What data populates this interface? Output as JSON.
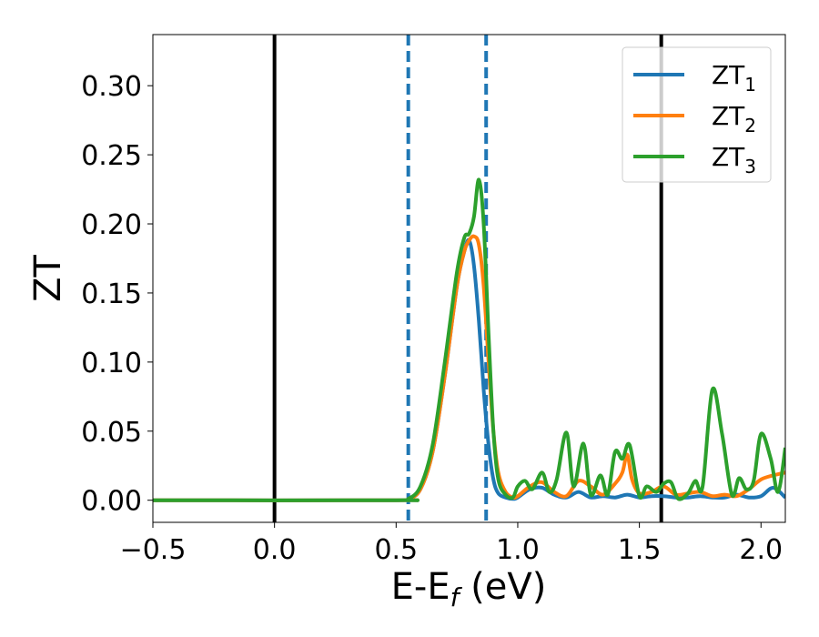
{
  "chart_data": {
    "type": "line",
    "xlabel": {
      "main": "E-E",
      "sub": "f",
      "unit": " (eV)"
    },
    "ylabel": "ZT",
    "xlim": [
      -0.5,
      2.1
    ],
    "ylim": [
      -0.016,
      0.337
    ],
    "xticks": [
      -0.5,
      0.0,
      0.5,
      1.0,
      1.5,
      2.0
    ],
    "xtick_labels": [
      "−0.5",
      "0.0",
      "0.5",
      "1.0",
      "1.5",
      "2.0"
    ],
    "yticks": [
      0.0,
      0.05,
      0.1,
      0.15,
      0.2,
      0.25,
      0.3
    ],
    "ytick_labels": [
      "0.00",
      "0.05",
      "0.10",
      "0.15",
      "0.20",
      "0.25",
      "0.30"
    ],
    "grid": false,
    "legend_position": "top-right",
    "vertical_lines": [
      {
        "x": 0.0,
        "style": "solid",
        "color": "#000000"
      },
      {
        "x": 1.59,
        "style": "solid",
        "color": "#000000"
      },
      {
        "x": 0.55,
        "style": "dashed",
        "color": "#1f77b4"
      },
      {
        "x": 0.87,
        "style": "dashed",
        "color": "#1f77b4"
      }
    ],
    "series": [
      {
        "name": "ZT",
        "sub": "1",
        "color": "#1f77b4",
        "x": [
          -0.5,
          0.5,
          0.55,
          0.6,
          0.65,
          0.7,
          0.75,
          0.78,
          0.8,
          0.82,
          0.84,
          0.86,
          0.88,
          0.9,
          0.92,
          0.95,
          0.98,
          1.0,
          1.05,
          1.1,
          1.15,
          1.2,
          1.25,
          1.3,
          1.35,
          1.4,
          1.45,
          1.5,
          1.55,
          1.6,
          1.65,
          1.7,
          1.75,
          1.8,
          1.85,
          1.9,
          1.95,
          2.0,
          2.05,
          2.1
        ],
        "y": [
          0.0,
          0.0,
          0.001,
          0.008,
          0.035,
          0.09,
          0.155,
          0.18,
          0.188,
          0.17,
          0.13,
          0.08,
          0.04,
          0.015,
          0.005,
          0.002,
          0.001,
          0.002,
          0.008,
          0.009,
          0.004,
          0.002,
          0.006,
          0.002,
          0.003,
          0.002,
          0.004,
          0.002,
          0.003,
          0.003,
          0.002,
          0.002,
          0.003,
          0.002,
          0.002,
          0.004,
          0.002,
          0.003,
          0.009,
          0.002
        ]
      },
      {
        "name": "ZT",
        "sub": "2",
        "color": "#ff7f0e",
        "x": [
          -0.5,
          0.5,
          0.55,
          0.6,
          0.65,
          0.7,
          0.75,
          0.78,
          0.8,
          0.82,
          0.84,
          0.86,
          0.88,
          0.9,
          0.92,
          0.95,
          0.98,
          1.0,
          1.05,
          1.1,
          1.15,
          1.2,
          1.25,
          1.3,
          1.35,
          1.4,
          1.43,
          1.45,
          1.47,
          1.5,
          1.55,
          1.6,
          1.65,
          1.7,
          1.75,
          1.8,
          1.85,
          1.9,
          1.95,
          2.0,
          2.05,
          2.1
        ],
        "y": [
          0.0,
          0.0,
          0.001,
          0.008,
          0.035,
          0.09,
          0.155,
          0.18,
          0.188,
          0.191,
          0.185,
          0.155,
          0.1,
          0.05,
          0.02,
          0.006,
          0.002,
          0.003,
          0.01,
          0.013,
          0.006,
          0.003,
          0.014,
          0.01,
          0.004,
          0.012,
          0.02,
          0.033,
          0.015,
          0.005,
          0.006,
          0.01,
          0.004,
          0.005,
          0.006,
          0.003,
          0.004,
          0.003,
          0.008,
          0.015,
          0.018,
          0.02
        ]
      },
      {
        "name": "ZT",
        "sub": "3",
        "color": "#2ca02c",
        "x": [
          -0.5,
          0.5,
          0.55,
          0.6,
          0.65,
          0.7,
          0.75,
          0.78,
          0.8,
          0.82,
          0.84,
          0.86,
          0.88,
          0.9,
          0.92,
          0.95,
          0.98,
          1.0,
          1.03,
          1.06,
          1.1,
          1.13,
          1.16,
          1.2,
          1.23,
          1.27,
          1.3,
          1.34,
          1.37,
          1.4,
          1.43,
          1.46,
          1.5,
          1.53,
          1.57,
          1.6,
          1.63,
          1.66,
          1.7,
          1.73,
          1.76,
          1.8,
          1.84,
          1.88,
          1.91,
          1.94,
          1.97,
          2.0,
          2.04,
          2.07,
          2.1
        ],
        "y": [
          0.0,
          0.0,
          0.001,
          0.01,
          0.04,
          0.1,
          0.165,
          0.19,
          0.193,
          0.205,
          0.232,
          0.2,
          0.12,
          0.05,
          0.015,
          0.004,
          0.002,
          0.01,
          0.014,
          0.008,
          0.02,
          0.006,
          0.015,
          0.049,
          0.01,
          0.041,
          0.004,
          0.018,
          0.004,
          0.035,
          0.03,
          0.04,
          0.003,
          0.01,
          0.006,
          0.012,
          0.013,
          0.001,
          0.005,
          0.014,
          0.01,
          0.08,
          0.048,
          0.004,
          0.016,
          0.008,
          0.014,
          0.048,
          0.03,
          0.006,
          0.038
        ]
      }
    ]
  }
}
